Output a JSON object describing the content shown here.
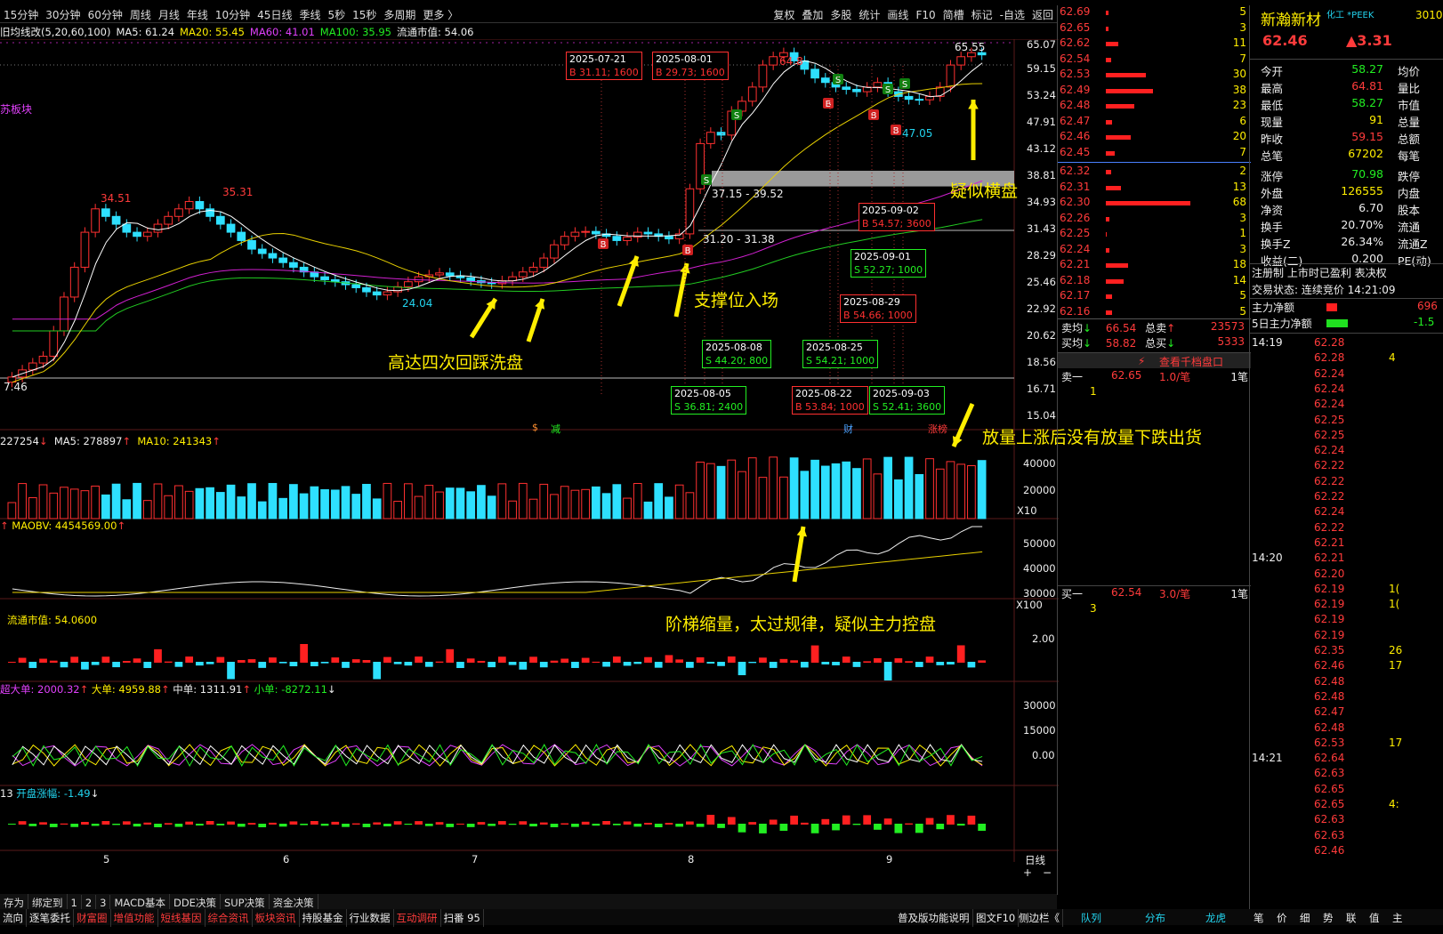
{
  "toolbar": {
    "periods": [
      "15分钟",
      "30分钟",
      "60分钟",
      "周线",
      "月线",
      "年线",
      "10分钟",
      "45日线",
      "季线",
      "5秒",
      "15秒",
      "多周期",
      "更多 〉"
    ],
    "right": [
      "复权",
      "叠加",
      "多股",
      "统计",
      "画线",
      "F10",
      "简槽",
      "标记",
      "-自选",
      "返回"
    ]
  },
  "indicator_row": {
    "name": "旧均线改(5,20,60,100)",
    "ma5": "MA5: 61.24",
    "ma20": "MA20: 55.45",
    "ma60": "MA60: 41.01",
    "ma100": "MA100: 35.95",
    "float": "流通市值: 54.06"
  },
  "left_stub": "苏板块",
  "y_axis_main": [
    "65.07",
    "59.15",
    "53.24",
    "47.91",
    "43.12",
    "38.81",
    "34.93",
    "31.43",
    "28.29",
    "25.46",
    "22.92",
    "20.62",
    "18.56",
    "16.71",
    "15.04"
  ],
  "price_labels": {
    "hi1": "34.51",
    "hi2": "35.31",
    "lo1": "24.04",
    "lo_left": "7.46",
    "hi3": "65.55",
    "low2": "47.05",
    "band": "37.15 - 39.52",
    "band2": "31.20 - 31.38",
    "hi_mid": "64.8"
  },
  "boxes": [
    {
      "date": "2025-07-21",
      "trade": "B 31.11; 1600",
      "color": "red"
    },
    {
      "date": "2025-08-01",
      "trade": "B 29.73; 1600",
      "color": "red"
    },
    {
      "date": "2025-09-02",
      "trade": "B 54.57; 3600",
      "color": "red"
    },
    {
      "date": "2025-09-01",
      "trade": "S 52.27; 1000",
      "color": "green"
    },
    {
      "date": "2025-08-29",
      "trade": "B 54.66; 1000",
      "color": "red"
    },
    {
      "date": "2025-08-08",
      "trade": "S 44.20; 800",
      "color": "green"
    },
    {
      "date": "2025-08-25",
      "trade": "S 54.21; 1000",
      "color": "green"
    },
    {
      "date": "2025-08-05",
      "trade": "S 36.81; 2400",
      "color": "green"
    },
    {
      "date": "2025-08-22",
      "trade": "B 53.84; 1000",
      "color": "red"
    },
    {
      "date": "2025-09-03",
      "trade": "S 52.41; 3600",
      "color": "green"
    }
  ],
  "annotations": {
    "a1": "高达四次回踩洗盘",
    "a2": "支撑位入场",
    "a3": "疑似横盘",
    "a4": "放量上涨后没有放量下跌出货",
    "a5": "阶梯缩量，太过规律，疑似主力控盘"
  },
  "markers": {
    "s": "$",
    "jian": "减",
    "cai": "财",
    "zhangbang": "涨榜"
  },
  "vol_row": {
    "v": "227254",
    "ma5": "MA5: 278897",
    "ma10": "MA10: 241343",
    "ticks": [
      "40000",
      "20000"
    ],
    "unit": "X10"
  },
  "obv_row": {
    "v": "MAOBV: 4454569.00",
    "ticks": [
      "50000",
      "40000",
      "30000"
    ],
    "unit": "X100"
  },
  "mv_row": {
    "v": "流通市值: 54.0600",
    "ticks": [
      "2.00"
    ]
  },
  "flow_row": {
    "v1": "超大单: 2000.32",
    "v2": "大单: 4959.88",
    "v3": "中单: 1311.91",
    "v4": "小单: -8272.11",
    "ticks": [
      "30000",
      "15000",
      "0.00"
    ]
  },
  "open_row": {
    "v0": "13",
    "v": "开盘涨幅: -1.49"
  },
  "x_axis": [
    "5",
    "6",
    "7",
    "8",
    "9"
  ],
  "x_unit": "日线",
  "bottom1": [
    "存为",
    "绑定到",
    "1",
    "2",
    "3",
    "MACD基本",
    "DDE决策",
    "SUP决策",
    "资金决策"
  ],
  "bottom2": [
    "流向",
    "逐笔委托",
    "财富圈",
    "增值功能",
    "短线基因",
    "综合资讯",
    "板块资讯",
    "持股基金",
    "行业数据",
    "互动调研",
    "扫番 95"
  ],
  "bottom2_right": [
    "普及版功能说明",
    "图文F10",
    "侧边栏《"
  ],
  "bottom_mid": [
    "队列",
    "分布",
    "龙虎"
  ],
  "bottom_right": [
    "笔",
    "价",
    "细",
    "势",
    "联",
    "值",
    "主"
  ],
  "orderbook_prices": [
    "62.69",
    "62.65",
    "62.62",
    "62.54",
    "62.53",
    "62.49",
    "62.48",
    "62.47",
    "62.46",
    "62.45",
    "62.32",
    "62.31",
    "62.30",
    "62.26",
    "62.25",
    "62.24",
    "62.21",
    "62.18",
    "62.17",
    "62.16"
  ],
  "orderbook_vols": [
    "5",
    "3",
    "11",
    "7",
    "30",
    "38",
    "23",
    "6",
    "20",
    "7",
    "2",
    "13",
    "68",
    "3",
    "1",
    "3",
    "18",
    "14",
    "5",
    "5"
  ],
  "orderbook_bars": [
    0.02,
    0.02,
    0.1,
    0.04,
    0.32,
    0.38,
    0.23,
    0.05,
    0.2,
    0.07,
    0.04,
    0.12,
    0.68,
    0.03,
    0.01,
    0.03,
    0.18,
    0.14,
    0.05,
    0.05
  ],
  "ob_summary": {
    "sell_avg_l": "卖均",
    "sell_avg": "66.54",
    "total_sell_l": "总卖",
    "total_sell": "23573",
    "buy_avg_l": "买均",
    "buy_avg": "58.82",
    "total_buy_l": "总买",
    "total_buy": "5333",
    "link": "查看千档盘口"
  },
  "sell1": {
    "l": "卖一",
    "p": "62.65",
    "q": "1.0/笔",
    "n": "1笔",
    "sub": "1"
  },
  "buy1": {
    "l": "买一",
    "p": "62.54",
    "q": "3.0/笔",
    "n": "1笔",
    "sub": "3"
  },
  "stock": {
    "name": "新瀚新材",
    "tag": "化工 *PEEK",
    "code": "3010",
    "price": "62.46",
    "change": "▲3.31"
  },
  "quote": [
    [
      "今开",
      "58.27",
      "均价"
    ],
    [
      "最高",
      "64.81",
      "量比"
    ],
    [
      "最低",
      "58.27",
      "市值"
    ],
    [
      "现量",
      "91",
      "总量"
    ],
    [
      "昨收",
      "59.15",
      "总额"
    ],
    [
      "总笔",
      "67202",
      "每笔"
    ],
    [
      "涨停",
      "70.98",
      "跌停"
    ],
    [
      "外盘",
      "126555",
      "内盘"
    ],
    [
      "净资",
      "6.70",
      "股本"
    ],
    [
      "换手",
      "20.70%",
      "流通"
    ],
    [
      "换手Z",
      "26.34%",
      "流通Z"
    ],
    [
      "收益(二)",
      "0.200",
      "PE(动)"
    ]
  ],
  "reg": "注册制 上市时已盈利 表决权",
  "trade_state": "交易状态: 连续竞价 14:21:09",
  "main_flow": {
    "l1": "主力净额",
    "v1": "696",
    "l2": "5日主力净额",
    "v2": "-1.5"
  },
  "ticks_time": [
    "14:19",
    "14:20",
    "14:21"
  ],
  "tick_prices": [
    "62.28",
    "62.28",
    "62.24",
    "62.24",
    "62.24",
    "62.25",
    "62.25",
    "62.24",
    "62.22",
    "62.22",
    "62.22",
    "62.24",
    "62.22",
    "62.21",
    "62.21",
    "62.20",
    "62.19",
    "62.19",
    "62.19",
    "62.19",
    "62.35",
    "62.46",
    "62.48",
    "62.48",
    "62.47",
    "62.48",
    "62.53",
    "62.64",
    "62.63",
    "62.65",
    "62.65",
    "62.63",
    "62.63",
    "62.46"
  ],
  "tick_vols": [
    "",
    "4",
    "",
    "",
    "",
    "",
    "",
    "",
    "",
    "",
    "",
    "",
    "",
    "",
    "",
    "",
    "1(",
    "1(",
    "",
    "",
    "26",
    "17",
    "",
    "",
    "",
    "",
    "17",
    "",
    "",
    "",
    "4:",
    "",
    "",
    ""
  ],
  "chart_data": {
    "type": "candlestick",
    "title": "",
    "ylim": [
      15.04,
      65.07
    ],
    "log_scale": true,
    "x_ticks": [
      "5",
      "6",
      "7",
      "8",
      "9"
    ],
    "note": "daily K-line with MA overlays; values estimated from gridlines",
    "closes": [
      17.5,
      18,
      18.5,
      19,
      21,
      24,
      27,
      31,
      34,
      33,
      32,
      31,
      30.5,
      31,
      32,
      33,
      34,
      35,
      34,
      33,
      32,
      31,
      30,
      29,
      28.5,
      28,
      27.5,
      27,
      26.5,
      26,
      25.7,
      25.5,
      25.2,
      24.9,
      24.5,
      24.2,
      24.5,
      25,
      25.5,
      26,
      26.2,
      26.4,
      26.1,
      25.9,
      25.6,
      25.4,
      25.3,
      25.6,
      26,
      26.5,
      27,
      28,
      29.5,
      30.5,
      31,
      31.1,
      30.8,
      30.5,
      30,
      30.4,
      31,
      30.8,
      30.5,
      30.2,
      30.8,
      36.8,
      44,
      46,
      45.5,
      50,
      52,
      55,
      60,
      62,
      63,
      61,
      59,
      57,
      56,
      55,
      54.5,
      54,
      55,
      56,
      54,
      53,
      52.4,
      52.3,
      53,
      55,
      60,
      62,
      63,
      62.46
    ]
  }
}
